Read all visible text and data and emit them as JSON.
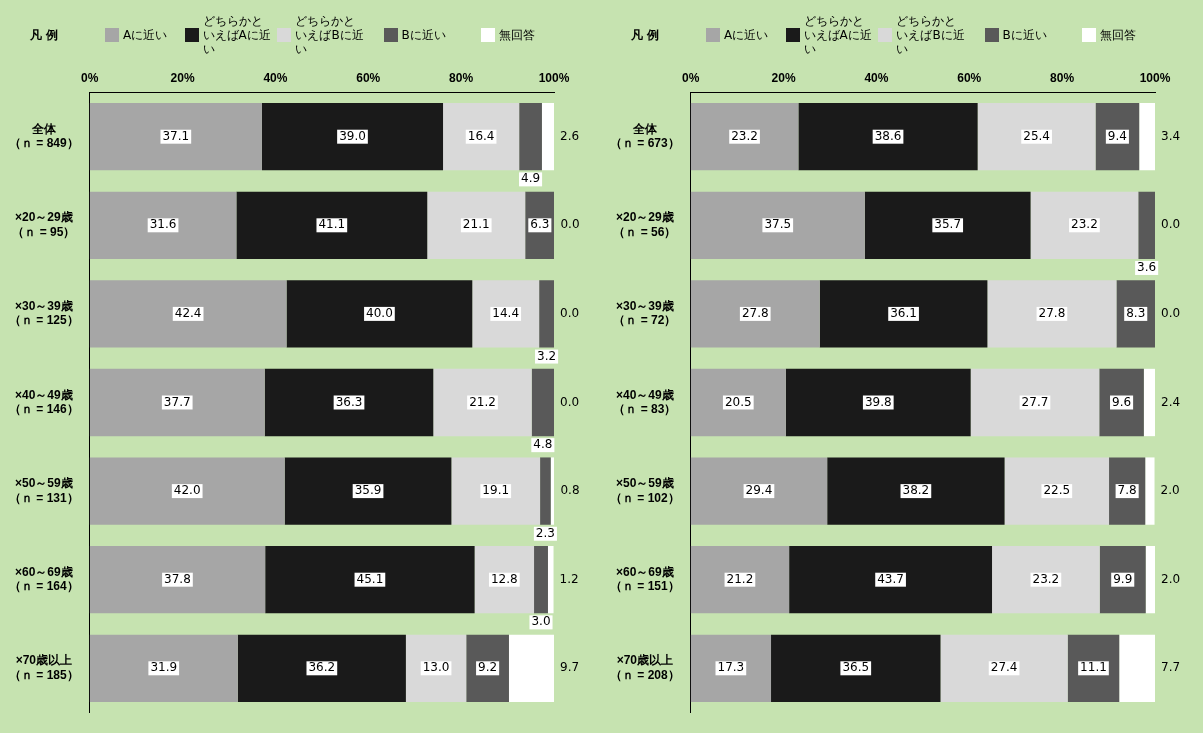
{
  "chart_data": [
    {
      "type": "bar",
      "orientation": "horizontal",
      "stacked": true,
      "legend": "top",
      "legend_title": "凡 例",
      "grid": false,
      "xlim": [
        0,
        100
      ],
      "xticks": [
        {
          "value": 0,
          "label": "0%"
        },
        {
          "value": 20,
          "label": "20%"
        },
        {
          "value": 40,
          "label": "40%"
        },
        {
          "value": 60,
          "label": "60%"
        },
        {
          "value": 80,
          "label": "80%"
        },
        {
          "value": 100,
          "label": "100%"
        }
      ],
      "categories": [
        "全体（ｎ = 849）",
        "×20～29歳（ｎ = 95）",
        "×30～39歳（ｎ = 125）",
        "×40～49歳（ｎ = 146）",
        "×50～59歳（ｎ = 131）",
        "×60～69歳（ｎ = 164）",
        "×70歳以上（ｎ = 185）"
      ],
      "series": [
        {
          "name": "Aに近い",
          "color": "#a6a6a6",
          "values": [
            37.1,
            31.6,
            42.4,
            37.7,
            42.0,
            37.8,
            31.9
          ],
          "value_labels": [
            "37.1",
            "31.6",
            "42.4",
            "37.7",
            "42.0",
            "37.8",
            "31.9"
          ]
        },
        {
          "name": "どちらかといえばAに近い",
          "color": "#1a1a1a",
          "values": [
            39.0,
            41.1,
            40.0,
            36.3,
            35.9,
            45.1,
            36.2
          ],
          "value_labels": [
            "39.0",
            "41.1",
            "40.0",
            "36.3",
            "35.9",
            "45.1",
            "36.2"
          ]
        },
        {
          "name": "どちらかといえばBに近い",
          "color": "#d9d9d9",
          "values": [
            16.4,
            21.1,
            14.4,
            21.2,
            19.1,
            12.8,
            13.0
          ],
          "value_labels": [
            "16.4",
            "21.1",
            "14.4",
            "21.2",
            "19.1",
            "12.8",
            "13.0"
          ]
        },
        {
          "name": "Bに近い",
          "color": "#595959",
          "values": [
            4.9,
            6.3,
            3.2,
            4.8,
            2.3,
            3.0,
            9.2
          ],
          "value_labels": [
            "4.9",
            "6.3",
            "3.2",
            "4.8",
            "2.3",
            "3.0",
            "9.2"
          ]
        },
        {
          "name": "無回答",
          "color": "#ffffff",
          "values": [
            2.6,
            0.0,
            0.0,
            0.0,
            0.8,
            1.2,
            9.7
          ],
          "value_labels": [
            "2.6",
            "0.0",
            "0.0",
            "0.0",
            "0.8",
            "1.2",
            "9.7"
          ]
        }
      ]
    },
    {
      "type": "bar",
      "orientation": "horizontal",
      "stacked": true,
      "legend": "top",
      "legend_title": "凡 例",
      "grid": false,
      "xlim": [
        0,
        100
      ],
      "xticks": [
        {
          "value": 0,
          "label": "0%"
        },
        {
          "value": 20,
          "label": "20%"
        },
        {
          "value": 40,
          "label": "40%"
        },
        {
          "value": 60,
          "label": "60%"
        },
        {
          "value": 80,
          "label": "80%"
        },
        {
          "value": 100,
          "label": "100%"
        }
      ],
      "categories": [
        "全体（ｎ = 673）",
        "×20～29歳（ｎ = 56）",
        "×30～39歳（ｎ = 72）",
        "×40～49歳（ｎ = 83）",
        "×50～59歳（ｎ = 102）",
        "×60～69歳（ｎ = 151）",
        "×70歳以上（ｎ = 208）"
      ],
      "series": [
        {
          "name": "Aに近い",
          "color": "#a6a6a6",
          "values": [
            23.2,
            37.5,
            27.8,
            20.5,
            29.4,
            21.2,
            17.3
          ],
          "value_labels": [
            "23.2",
            "37.5",
            "27.8",
            "20.5",
            "29.4",
            "21.2",
            "17.3"
          ]
        },
        {
          "name": "どちらかといえばAに近い",
          "color": "#1a1a1a",
          "values": [
            38.6,
            35.7,
            36.1,
            39.8,
            38.2,
            43.7,
            36.5
          ],
          "value_labels": [
            "38.6",
            "35.7",
            "36.1",
            "39.8",
            "38.2",
            "43.7",
            "36.5"
          ]
        },
        {
          "name": "どちらかといえばBに近い",
          "color": "#d9d9d9",
          "values": [
            25.4,
            23.2,
            27.8,
            27.7,
            22.5,
            23.2,
            27.4
          ],
          "value_labels": [
            "25.4",
            "23.2",
            "27.8",
            "27.7",
            "22.5",
            "23.2",
            "27.4"
          ]
        },
        {
          "name": "Bに近い",
          "color": "#595959",
          "values": [
            9.4,
            3.6,
            8.3,
            9.6,
            7.8,
            9.9,
            11.1
          ],
          "value_labels": [
            "9.4",
            "3.6",
            "8.3",
            "9.6",
            "7.8",
            "9.9",
            "11.1"
          ]
        },
        {
          "name": "無回答",
          "color": "#ffffff",
          "values": [
            3.4,
            0.0,
            0.0,
            2.4,
            2.0,
            2.0,
            7.7
          ],
          "value_labels": [
            "3.4",
            "0.0",
            "0.0",
            "2.4",
            "2.0",
            "2.0",
            "7.7"
          ]
        }
      ]
    }
  ]
}
